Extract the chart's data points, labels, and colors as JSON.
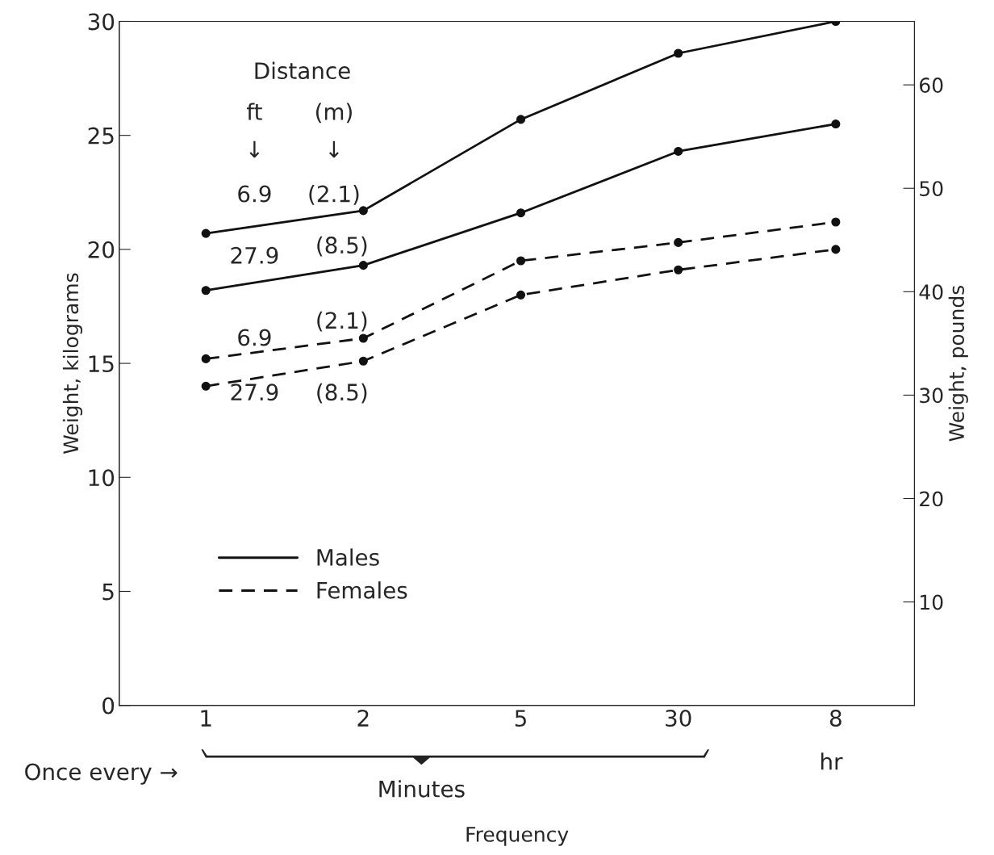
{
  "chart_data": {
    "type": "line",
    "xlabel": "Frequency",
    "ylabel": "Weight, kilograms",
    "y2label": "Weight, pounds",
    "categories": [
      "1",
      "2",
      "5",
      "30",
      "8"
    ],
    "series": [
      {
        "name": "Males",
        "color": "#111111",
        "line_style": "solid",
        "values": [
          20.7,
          21.7,
          25.7,
          28.6,
          30.0
        ]
      },
      {
        "color": "#111111",
        "line_style": "solid",
        "values": [
          18.2,
          19.3,
          21.6,
          24.3,
          25.5
        ]
      },
      {
        "name": "Females",
        "color": "#111111",
        "line_style": "dashed",
        "values": [
          15.2,
          16.1,
          19.5,
          20.3,
          21.2
        ]
      },
      {
        "color": "#111111",
        "line_style": "dashed",
        "values": [
          14.0,
          15.1,
          18.0,
          19.1,
          20.0
        ]
      }
    ],
    "ylim": [
      0,
      30
    ],
    "yticks": [
      0,
      5,
      10,
      15,
      20,
      25,
      30
    ],
    "y2lim": [
      0,
      66.14
    ],
    "y2ticks": [
      10,
      20,
      30,
      40,
      50,
      60
    ],
    "marker": "circle",
    "grid": false,
    "legend": "bottom left",
    "annotations": [
      "Distance",
      "ft",
      "(m)",
      "↓",
      "↓",
      "6.9",
      "(2.1)",
      "27.9",
      "(8.5)",
      "6.9",
      "(2.1)",
      "27.9",
      "(8.5)",
      "Once every →",
      "Minutes",
      "hr"
    ]
  }
}
